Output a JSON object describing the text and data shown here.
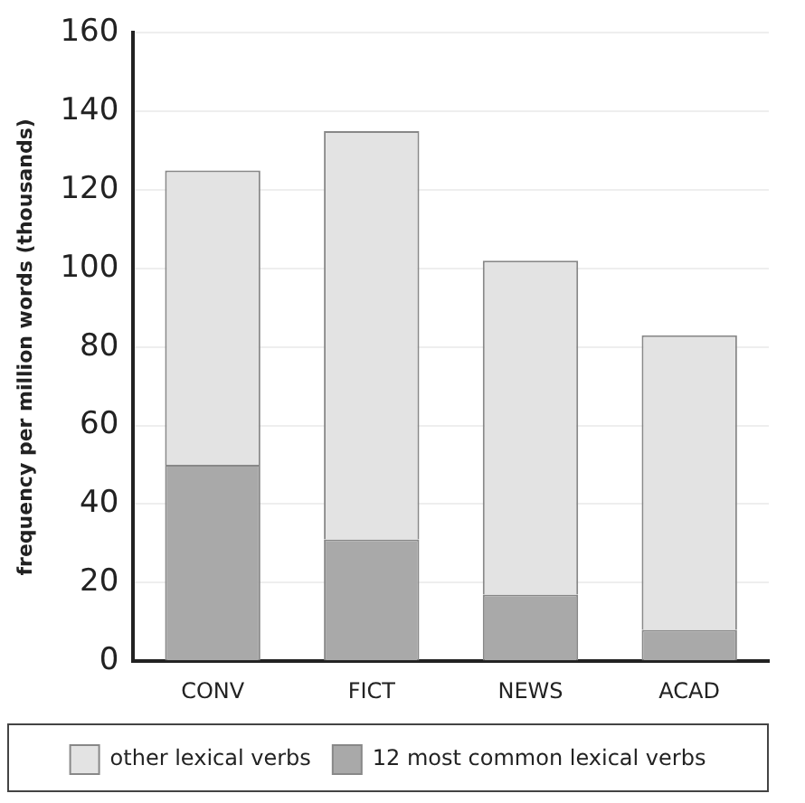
{
  "chart_data": {
    "type": "bar",
    "stacked": true,
    "ylabel": "frequency per million words (thousands)",
    "categories": [
      "CONV",
      "FICT",
      "NEWS",
      "ACAD"
    ],
    "series": [
      {
        "name": "12 most common lexical verbs",
        "color": "#a9a9a9",
        "values": [
          50,
          31,
          17,
          8
        ]
      },
      {
        "name": "other lexical verbs",
        "color": "#e3e3e3",
        "values": [
          75,
          104,
          85,
          75
        ]
      }
    ],
    "ylim": [
      0,
      160
    ],
    "yticks": [
      0,
      20,
      40,
      60,
      80,
      100,
      120,
      140,
      160
    ],
    "grid": "y",
    "legend": "bottom"
  }
}
